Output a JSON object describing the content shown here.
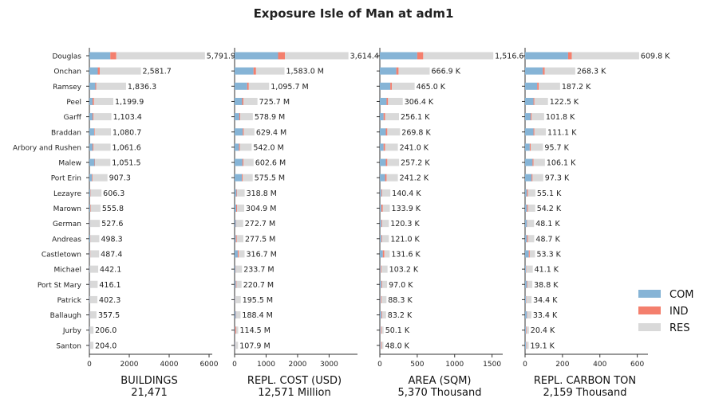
{
  "chart_data": {
    "type": "bar",
    "orientation": "horizontal",
    "stacked": true,
    "title": "Exposure Isle of Man at adm1",
    "categories": [
      "Douglas",
      "Onchan",
      "Ramsey",
      "Peel",
      "Garff",
      "Braddan",
      "Arbory and Rushen",
      "Malew",
      "Port Erin",
      "Lezayre",
      "Marown",
      "German",
      "Andreas",
      "Castletown",
      "Michael",
      "Port St Mary",
      "Patrick",
      "Ballaugh",
      "Jurby",
      "Santon"
    ],
    "legend": {
      "placement": "right",
      "entries": [
        {
          "name": "COM",
          "color": "#86b4d6"
        },
        {
          "name": "IND",
          "color": "#f47f6d"
        },
        {
          "name": "RES",
          "color": "#d9d9d9"
        }
      ]
    },
    "panels": [
      {
        "xlabel": "BUILDINGS",
        "total": "21,471",
        "xlim": [
          0,
          6000
        ],
        "ticks": [
          0,
          2000,
          4000,
          6000
        ],
        "tick_labels": [
          "0",
          "2000",
          "4000",
          "6000"
        ],
        "labels": [
          "5,791.9",
          "2,581.7",
          "1,836.3",
          "1,199.9",
          "1,103.4",
          "1,080.7",
          "1,061.6",
          "1,051.5",
          "907.3",
          "606.3",
          "555.8",
          "527.6",
          "498.3",
          "487.4",
          "442.1",
          "416.1",
          "402.3",
          "357.5",
          "206.0",
          "204.0"
        ],
        "series": [
          {
            "name": "COM",
            "values": [
              1050,
              420,
              300,
              160,
              160,
              240,
              160,
              260,
              130,
              50,
              40,
              30,
              40,
              30,
              20,
              30,
              20,
              30,
              20,
              30
            ]
          },
          {
            "name": "IND",
            "values": [
              300,
              100,
              40,
              70,
              40,
              30,
              40,
              20,
              30,
              20,
              20,
              10,
              10,
              20,
              10,
              10,
              10,
              10,
              10,
              10
            ]
          },
          {
            "name": "RES",
            "values": [
              4441.9,
              2061.7,
              1496.3,
              969.9,
              903.4,
              810.7,
              861.6,
              771.5,
              747.3,
              536.3,
              495.8,
              487.6,
              448.3,
              437.4,
              412.1,
              376.1,
              372.3,
              317.5,
              176.0,
              164.0
            ]
          }
        ]
      },
      {
        "xlabel": "REPL. COST (USD)",
        "total": "12,571 Million",
        "xlim": [
          0,
          3800
        ],
        "ticks": [
          0,
          1000,
          2000,
          3000
        ],
        "tick_labels": [
          "0",
          "1000",
          "2000",
          "3000"
        ],
        "labels": [
          "3,614.4",
          "1,583.0 M",
          "1,095.7 M",
          "725.7 M",
          "578.9 M",
          "629.4 M",
          "542.0 M",
          "602.6 M",
          "575.5 M",
          "318.8 M",
          "304.9 M",
          "272.7 M",
          "277.5 M",
          "316.7 M",
          "233.7 M",
          "220.7 M",
          "195.5 M",
          "188.4 M",
          "114.5 M",
          "107.9 M"
        ],
        "series": [
          {
            "name": "COM",
            "values": [
              1380,
              600,
              400,
              240,
              150,
              260,
              140,
              250,
              230,
              60,
              50,
              40,
              40,
              100,
              30,
              40,
              20,
              40,
              20,
              20
            ]
          },
          {
            "name": "IND",
            "values": [
              220,
              80,
              50,
              40,
              30,
              30,
              30,
              30,
              30,
              20,
              30,
              10,
              30,
              30,
              10,
              20,
              10,
              10,
              30,
              10
            ]
          },
          {
            "name": "RES",
            "values": [
              2014.4,
              903.0,
              645.7,
              445.7,
              398.9,
              339.4,
              372.0,
              322.6,
              315.5,
              238.8,
              224.9,
              222.7,
              207.5,
              186.7,
              193.7,
              160.7,
              165.5,
              138.4,
              64.5,
              77.9
            ]
          }
        ]
      },
      {
        "xlabel": "AREA (SQM)",
        "total": "5,370 Thousand",
        "xlim": [
          0,
          1600
        ],
        "ticks": [
          0,
          500,
          1000,
          1500
        ],
        "tick_labels": [
          "0",
          "500",
          "1000",
          "1500"
        ],
        "labels": [
          "1,516.6",
          "666.9 K",
          "465.0 K",
          "306.4 K",
          "256.1 K",
          "269.8 K",
          "241.0 K",
          "257.2 K",
          "241.2 K",
          "140.4 K",
          "133.9 K",
          "120.3 K",
          "121.0 K",
          "131.6 K",
          "103.2 K",
          "97.0 K",
          "88.3 K",
          "83.2 K",
          "50.1 K",
          "48.0 K"
        ],
        "series": [
          {
            "name": "COM",
            "values": [
              500,
              220,
              140,
              90,
              50,
              80,
              50,
              80,
              70,
              20,
              20,
              20,
              20,
              40,
              10,
              20,
              10,
              20,
              10,
              10
            ]
          },
          {
            "name": "IND",
            "values": [
              80,
              30,
              20,
              20,
              20,
              20,
              20,
              20,
              20,
              10,
              20,
              10,
              10,
              20,
              10,
              10,
              10,
              10,
              10,
              10
            ]
          },
          {
            "name": "RES",
            "values": [
              936.6,
              416.9,
              305.0,
              196.4,
              186.1,
              169.8,
              171.0,
              157.2,
              151.2,
              110.4,
              93.9,
              90.3,
              91.0,
              71.6,
              83.2,
              67.0,
              68.3,
              53.2,
              30.1,
              28.0
            ]
          }
        ]
      },
      {
        "xlabel": "REPL. CARBON TON",
        "total": "2,159 Thousand",
        "xlim": [
          0,
          640
        ],
        "ticks": [
          0,
          200,
          400,
          600
        ],
        "tick_labels": [
          "0",
          "200",
          "400",
          "600"
        ],
        "labels": [
          "609.8 K",
          "268.3 K",
          "187.2 K",
          "122.5 K",
          "101.8 K",
          "111.1 K",
          "95.7 K",
          "106.1 K",
          "97.3 K",
          "55.1 K",
          "54.2 K",
          "48.1 K",
          "48.7 K",
          "53.3 K",
          "41.1 K",
          "38.8 K",
          "34.4 K",
          "33.4 K",
          "20.4 K",
          "19.1 K"
        ],
        "series": [
          {
            "name": "COM",
            "values": [
              230,
              95,
              65,
              45,
              30,
              45,
              25,
              40,
              35,
              10,
              10,
              10,
              10,
              20,
              5,
              10,
              5,
              10,
              5,
              5
            ]
          },
          {
            "name": "IND",
            "values": [
              20,
              10,
              8,
              5,
              5,
              5,
              5,
              5,
              5,
              5,
              5,
              2,
              5,
              5,
              2,
              3,
              2,
              2,
              3,
              2
            ]
          },
          {
            "name": "RES",
            "values": [
              359.8,
              163.3,
              114.2,
              72.5,
              66.8,
              61.1,
              65.7,
              61.1,
              57.3,
              40.1,
              39.2,
              36.1,
              33.7,
              28.3,
              34.1,
              25.8,
              27.4,
              21.4,
              12.4,
              12.1
            ]
          }
        ]
      }
    ]
  }
}
